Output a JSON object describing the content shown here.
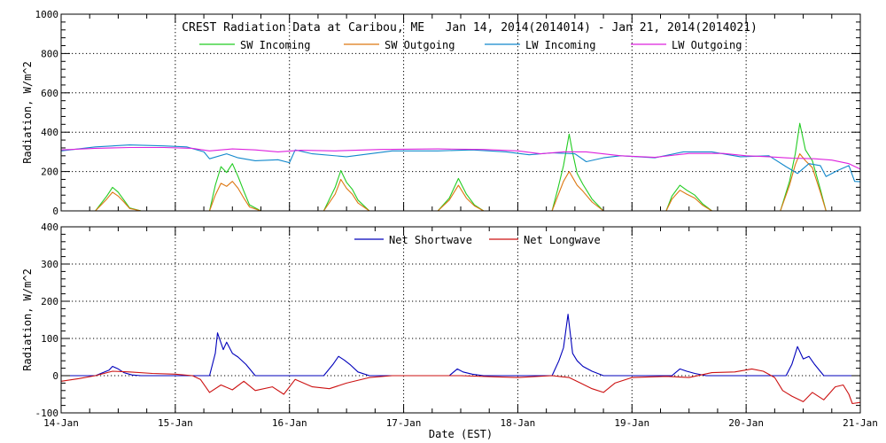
{
  "chart_data": [
    {
      "type": "line",
      "title": "CREST Radiation Data at Caribou, ME   Jan 14, 2014(2014014) - Jan 21, 2014(2014021)",
      "ylabel": "Radiation, W/m^2",
      "xlabel": "",
      "ylim": [
        0,
        1000
      ],
      "yticks": [
        0,
        200,
        400,
        600,
        800,
        1000
      ],
      "xlim": [
        14,
        21
      ],
      "legend": "top",
      "grid": true,
      "series": [
        {
          "name": "SW Incoming",
          "color": "#22cc22",
          "x": [
            14.0,
            14.3,
            14.4,
            14.45,
            14.5,
            14.55,
            14.6,
            14.7,
            15.3,
            15.35,
            15.4,
            15.45,
            15.5,
            15.55,
            15.6,
            15.65,
            15.75,
            16.3,
            16.4,
            16.45,
            16.5,
            16.55,
            16.6,
            16.7,
            17.3,
            17.4,
            17.48,
            17.55,
            17.62,
            17.7,
            18.3,
            18.35,
            18.4,
            18.45,
            18.48,
            18.52,
            18.57,
            18.65,
            18.75,
            19.3,
            19.35,
            19.42,
            19.48,
            19.55,
            19.62,
            19.7,
            20.3,
            20.38,
            20.43,
            20.47,
            20.52,
            20.58,
            20.65,
            20.7,
            21.0
          ],
          "y": [
            0,
            0,
            75,
            120,
            95,
            55,
            15,
            0,
            0,
            130,
            225,
            195,
            240,
            175,
            100,
            30,
            0,
            0,
            120,
            205,
            145,
            110,
            55,
            0,
            0,
            65,
            165,
            85,
            30,
            0,
            0,
            110,
            230,
            390,
            295,
            190,
            135,
            60,
            0,
            0,
            75,
            130,
            105,
            80,
            35,
            0,
            0,
            150,
            290,
            445,
            310,
            255,
            110,
            0,
            0
          ]
        },
        {
          "name": "SW Outgoing",
          "color": "#dd7711",
          "x": [
            14.0,
            14.3,
            14.4,
            14.45,
            14.5,
            14.55,
            14.6,
            14.7,
            15.3,
            15.35,
            15.4,
            15.45,
            15.5,
            15.55,
            15.6,
            15.65,
            15.75,
            16.3,
            16.4,
            16.45,
            16.5,
            16.55,
            16.6,
            16.7,
            17.3,
            17.4,
            17.48,
            17.55,
            17.62,
            17.7,
            18.3,
            18.35,
            18.4,
            18.45,
            18.48,
            18.52,
            18.57,
            18.65,
            18.75,
            19.3,
            19.35,
            19.42,
            19.48,
            19.55,
            19.62,
            19.7,
            20.3,
            20.38,
            20.43,
            20.47,
            20.52,
            20.58,
            20.65,
            20.7,
            21.0
          ],
          "y": [
            0,
            0,
            60,
            95,
            75,
            45,
            12,
            0,
            0,
            80,
            140,
            125,
            150,
            115,
            65,
            20,
            0,
            0,
            85,
            160,
            115,
            85,
            40,
            0,
            0,
            55,
            130,
            65,
            25,
            0,
            0,
            75,
            150,
            200,
            170,
            130,
            100,
            45,
            0,
            0,
            60,
            105,
            85,
            65,
            28,
            0,
            0,
            130,
            235,
            290,
            255,
            220,
            95,
            0,
            0
          ]
        },
        {
          "name": "LW Incoming",
          "color": "#1188cc",
          "x": [
            14.0,
            14.3,
            14.6,
            14.9,
            15.1,
            15.25,
            15.3,
            15.45,
            15.55,
            15.7,
            15.9,
            16.0,
            16.05,
            16.2,
            16.5,
            16.9,
            17.3,
            17.6,
            17.9,
            18.1,
            18.3,
            18.5,
            18.6,
            18.75,
            18.9,
            19.2,
            19.45,
            19.7,
            19.95,
            20.2,
            20.35,
            20.45,
            20.55,
            20.65,
            20.7,
            20.8,
            20.9,
            20.95,
            21.0
          ],
          "y": [
            305,
            325,
            335,
            330,
            325,
            300,
            265,
            290,
            270,
            255,
            260,
            245,
            310,
            290,
            275,
            305,
            305,
            310,
            300,
            285,
            295,
            290,
            250,
            270,
            280,
            270,
            300,
            300,
            275,
            280,
            225,
            190,
            240,
            230,
            175,
            205,
            230,
            150,
            148
          ]
        },
        {
          "name": "LW Outgoing",
          "color": "#dd22dd",
          "x": [
            14.0,
            14.3,
            14.6,
            14.9,
            15.15,
            15.3,
            15.5,
            15.7,
            15.9,
            16.1,
            16.4,
            16.8,
            17.3,
            17.7,
            18.0,
            18.2,
            18.4,
            18.6,
            18.9,
            19.2,
            19.5,
            19.8,
            20.0,
            20.2,
            20.4,
            20.6,
            20.75,
            20.9,
            21.0
          ],
          "y": [
            310,
            318,
            322,
            322,
            318,
            305,
            315,
            310,
            300,
            308,
            305,
            312,
            315,
            312,
            305,
            290,
            300,
            300,
            280,
            272,
            292,
            292,
            280,
            275,
            268,
            265,
            258,
            240,
            212
          ]
        }
      ]
    },
    {
      "type": "line",
      "title": "",
      "ylabel": "Radiation, W/m^2",
      "xlabel": "Date (EST)",
      "ylim": [
        -100,
        400
      ],
      "yticks": [
        -100,
        0,
        100,
        200,
        300,
        400
      ],
      "xlim": [
        14,
        21
      ],
      "legend": "top",
      "grid": true,
      "categories": [
        "14-Jan",
        "15-Jan",
        "16-Jan",
        "17-Jan",
        "18-Jan",
        "19-Jan",
        "20-Jan",
        "21-Jan"
      ],
      "series": [
        {
          "name": "Net Shortwave",
          "color": "#0000bb",
          "x": [
            14.0,
            14.3,
            14.42,
            14.45,
            14.5,
            14.55,
            14.62,
            14.7,
            15.3,
            15.35,
            15.37,
            15.42,
            15.45,
            15.5,
            15.55,
            15.62,
            15.7,
            16.3,
            16.38,
            16.43,
            16.48,
            16.53,
            16.6,
            16.7,
            17.4,
            17.47,
            17.52,
            17.6,
            17.7,
            18.3,
            18.36,
            18.4,
            18.44,
            18.48,
            18.52,
            18.57,
            18.65,
            18.75,
            19.35,
            19.42,
            19.48,
            19.55,
            19.65,
            20.35,
            20.4,
            20.45,
            20.5,
            20.55,
            20.6,
            20.68,
            21.0
          ],
          "y": [
            0,
            0,
            15,
            25,
            18,
            8,
            2,
            0,
            0,
            60,
            115,
            70,
            90,
            60,
            50,
            30,
            0,
            0,
            30,
            52,
            42,
            30,
            10,
            0,
            0,
            18,
            10,
            4,
            0,
            0,
            40,
            75,
            165,
            60,
            40,
            25,
            12,
            0,
            0,
            18,
            12,
            6,
            0,
            0,
            30,
            78,
            45,
            52,
            30,
            0,
            0
          ]
        },
        {
          "name": "Net Longwave",
          "color": "#cc1111",
          "x": [
            14.0,
            14.15,
            14.3,
            14.45,
            14.6,
            14.8,
            15.0,
            15.15,
            15.22,
            15.3,
            15.4,
            15.5,
            15.6,
            15.7,
            15.85,
            15.95,
            16.05,
            16.2,
            16.35,
            16.5,
            16.7,
            16.9,
            17.2,
            17.5,
            17.8,
            18.0,
            18.3,
            18.45,
            18.55,
            18.65,
            18.75,
            18.85,
            19.0,
            19.3,
            19.5,
            19.7,
            19.9,
            20.05,
            20.15,
            20.25,
            20.32,
            20.4,
            20.5,
            20.58,
            20.68,
            20.78,
            20.85,
            20.9,
            20.93,
            21.0
          ],
          "y": [
            -15,
            -8,
            0,
            12,
            10,
            6,
            4,
            0,
            -10,
            -45,
            -25,
            -38,
            -15,
            -40,
            -30,
            -50,
            -10,
            -30,
            -35,
            -20,
            -5,
            0,
            0,
            0,
            -3,
            -5,
            0,
            -5,
            -20,
            -35,
            -45,
            -20,
            -5,
            -2,
            -5,
            8,
            10,
            18,
            12,
            -5,
            -40,
            -55,
            -70,
            -45,
            -65,
            -30,
            -25,
            -50,
            -75,
            -72
          ]
        }
      ]
    }
  ]
}
